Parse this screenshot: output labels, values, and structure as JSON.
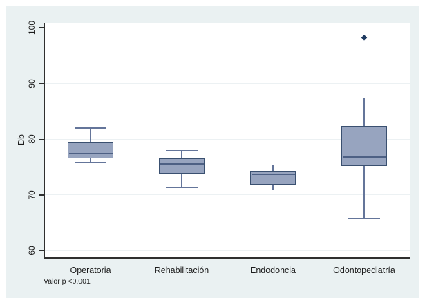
{
  "chart_data": {
    "type": "box",
    "title": "",
    "xlabel": "",
    "ylabel": "Db",
    "ylim": [
      58.8,
      100.9
    ],
    "yticks": [
      60,
      70,
      80,
      90,
      100
    ],
    "grid": "horizontal",
    "legend": "none",
    "categories": [
      "Operatoria",
      "Rehabilitación",
      "Endodoncia",
      "Odontopediatría"
    ],
    "series": [
      {
        "name": "Operatoria",
        "whisker_low": 75.8,
        "q1": 76.5,
        "median": 77.4,
        "q3": 79.4,
        "whisker_high": 82.0,
        "outliers": []
      },
      {
        "name": "Rehabilitación",
        "whisker_low": 71.3,
        "q1": 73.8,
        "median": 75.5,
        "q3": 76.6,
        "whisker_high": 78.0,
        "outliers": []
      },
      {
        "name": "Endodoncia",
        "whisker_low": 70.9,
        "q1": 71.9,
        "median": 73.7,
        "q3": 74.3,
        "whisker_high": 75.4,
        "outliers": []
      },
      {
        "name": "Odontopediatría",
        "whisker_low": 65.8,
        "q1": 75.2,
        "median": 76.8,
        "q3": 82.4,
        "whisker_high": 87.4,
        "outliers": [
          98.3
        ]
      }
    ],
    "note": "Valor p <0,001",
    "colors": {
      "graph_background": "#eaf1f2",
      "plot_background": "#ffffff",
      "gridline": "#ecf1f3",
      "box_fill": "#97a4bf",
      "box_border": "#3a5070",
      "median": "#4d6084",
      "whisker": "#64759a",
      "outlier": "#1e3a60",
      "axis": "#2f2f2f",
      "text": "#1c1c1c"
    }
  }
}
